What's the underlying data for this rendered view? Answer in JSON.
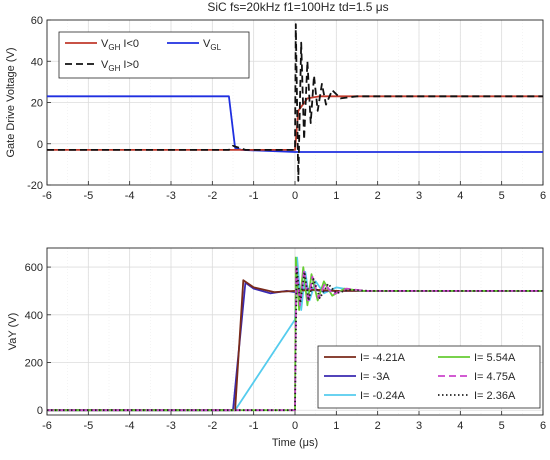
{
  "title": "SiC fs=20kHz f1=100Hz td=1.5 μs",
  "chart_data": [
    {
      "type": "line",
      "ylabel": "Gate Drive Voltage (V)",
      "xlim": [
        -6,
        6
      ],
      "ylim": [
        -20,
        60
      ],
      "xticks": [
        "-6",
        "-5",
        "-4",
        "-3",
        "-2",
        "-1",
        "0",
        "1",
        "2",
        "3",
        "4",
        "5",
        "6"
      ],
      "yticks": [
        "-20",
        "0",
        "20",
        "40",
        "60"
      ],
      "grid": true,
      "legend_position": "top-left",
      "legend": [
        {
          "main": "V",
          "sub": "GH",
          "after": " I<0",
          "color": "#c0392b",
          "dash": "solid"
        },
        {
          "main": "V",
          "sub": "GL",
          "after": "",
          "color": "#1f2fe0",
          "dash": "solid"
        },
        {
          "main": "V",
          "sub": "GH",
          "after": " I>0",
          "color": "#111111",
          "dash": "dashed"
        }
      ],
      "series": [
        {
          "color": "#1f2fe0",
          "dash": "solid",
          "x": [
            -6,
            -1.6,
            -1.45,
            -1.3,
            0,
            0.5,
            6
          ],
          "y": [
            23,
            23,
            -2,
            -3,
            -4,
            -4,
            -4
          ]
        },
        {
          "color": "#c0392b",
          "dash": "solid",
          "x": [
            -6,
            -1.3,
            -1.0,
            0,
            0.08,
            0.3,
            0.6,
            6
          ],
          "y": [
            -3,
            -3,
            -3,
            -3,
            16,
            22,
            23,
            23
          ]
        },
        {
          "color": "#111111",
          "dash": "dashed",
          "x": [
            -6,
            -1.6,
            -1.5,
            -1.2,
            -1.0,
            0,
            0.02,
            0.08,
            0.15,
            0.22,
            0.3,
            0.38,
            0.46,
            0.55,
            0.65,
            0.75,
            0.9,
            1.1,
            1.5,
            6
          ],
          "y": [
            -3,
            -3,
            -1,
            -3,
            -3,
            -3,
            58,
            -18,
            49,
            2,
            40,
            10,
            33,
            16,
            29,
            19,
            26,
            22,
            23,
            23
          ]
        }
      ]
    },
    {
      "type": "line",
      "xlabel": "Time (μs)",
      "ylabel": "VaY (V)",
      "xlim": [
        -6,
        6
      ],
      "ylim": [
        -20,
        680
      ],
      "xticks": [
        "-6",
        "-5",
        "-4",
        "-3",
        "-2",
        "-1",
        "0",
        "1",
        "2",
        "3",
        "4",
        "5",
        "6"
      ],
      "yticks": [
        "0",
        "200",
        "400",
        "600"
      ],
      "grid": true,
      "legend_position": "bottom-right",
      "legend": [
        {
          "label": "I= -4.21A",
          "color": "#7a2a1a",
          "dash": "solid"
        },
        {
          "label": "I= 5.54A",
          "color": "#66cc33",
          "dash": "solid"
        },
        {
          "label": "I= -3A",
          "color": "#3a2ab0",
          "dash": "solid"
        },
        {
          "label": "I= 4.75A",
          "color": "#cc44cc",
          "dash": "dashed"
        },
        {
          "label": "I= -0.24A",
          "color": "#55ccee",
          "dash": "solid"
        },
        {
          "label": "I= 2.36A",
          "color": "#222222",
          "dash": "dotted"
        }
      ],
      "series": [
        {
          "color": "#55ccee",
          "dash": "solid",
          "x": [
            -6,
            -1.45,
            0,
            0.05,
            0.15,
            0.25,
            0.35,
            0.5,
            0.7,
            1,
            1.5,
            6
          ],
          "y": [
            0,
            0,
            380,
            640,
            420,
            580,
            460,
            540,
            490,
            515,
            500,
            500
          ]
        },
        {
          "color": "#3a2ab0",
          "dash": "solid",
          "x": [
            -6,
            -1.5,
            -1.2,
            -1.0,
            -0.6,
            -0.2,
            0,
            0.3,
            0.6,
            1,
            6
          ],
          "y": [
            0,
            0,
            535,
            510,
            490,
            500,
            495,
            510,
            500,
            500,
            500
          ]
        },
        {
          "color": "#7a2a1a",
          "dash": "solid",
          "x": [
            -6,
            -1.45,
            -1.25,
            -1.0,
            -0.5,
            0,
            0.5,
            1,
            6
          ],
          "y": [
            0,
            0,
            545,
            515,
            495,
            500,
            505,
            500,
            500
          ]
        },
        {
          "color": "#66cc33",
          "dash": "solid",
          "x": [
            -6,
            0,
            0.02,
            0.1,
            0.2,
            0.3,
            0.4,
            0.55,
            0.7,
            0.9,
            1.2,
            1.6,
            6
          ],
          "y": [
            0,
            0,
            640,
            420,
            600,
            440,
            570,
            460,
            540,
            480,
            510,
            500,
            500
          ]
        },
        {
          "color": "#cc44cc",
          "dash": "dashed",
          "x": [
            -6,
            0,
            0.03,
            0.12,
            0.22,
            0.32,
            0.42,
            0.57,
            0.72,
            0.92,
            1.25,
            1.7,
            6
          ],
          "y": [
            0,
            0,
            610,
            440,
            590,
            450,
            560,
            470,
            530,
            485,
            510,
            500,
            500
          ]
        },
        {
          "color": "#222222",
          "dash": "dotted",
          "x": [
            -6,
            0,
            0.04,
            0.13,
            0.23,
            0.33,
            0.45,
            0.6,
            0.8,
            1.0,
            1.3,
            1.8,
            6
          ],
          "y": [
            0,
            0,
            600,
            450,
            580,
            460,
            550,
            470,
            530,
            490,
            505,
            500,
            500
          ]
        }
      ]
    }
  ]
}
